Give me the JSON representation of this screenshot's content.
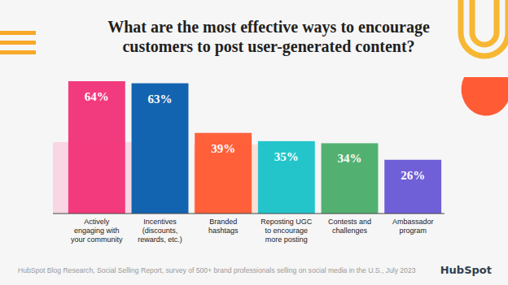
{
  "chart_data": {
    "type": "bar",
    "title": "What are the most effective ways to encourage customers to post user-generated content?",
    "categories": [
      "Actively engaging with your community",
      "Incentives (discounts, rewards, etc.)",
      "Branded hashtags",
      "Reposting UGC to encourage more posting",
      "Contests and challenges",
      "Ambassador program"
    ],
    "values": [
      64,
      63,
      39,
      35,
      34,
      26
    ],
    "value_labels": [
      "64%",
      "63%",
      "39%",
      "35%",
      "34%",
      "26%"
    ],
    "colors": [
      "#f2357a",
      "#0b5fad",
      "#ff5c35",
      "#1cc3c9",
      "#4cae6c",
      "#6b5bd6"
    ],
    "ylim": [
      0,
      68
    ],
    "data_labels": true,
    "tick_labels": "x",
    "source": "HubSpot Blog Research, Social Selling Report, survey of 500+ brand professionals selling on social media in the U.S., July 2023",
    "logo": "HubSpot"
  }
}
